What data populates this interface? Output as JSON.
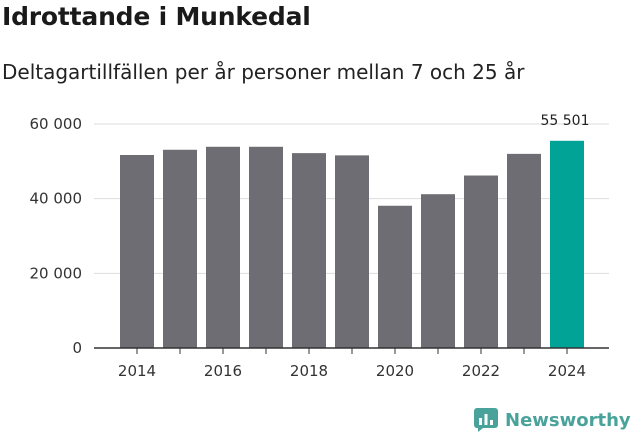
{
  "header": {
    "title": "Idrottande i Munkedal",
    "subtitle": "Deltagartillfällen per år personer mellan 7 och 25 år"
  },
  "brand": {
    "name": "Newsworthy",
    "icon": "bar-chart-icon",
    "color": "#4aa39a"
  },
  "colors": {
    "bar": "#6e6d73",
    "highlight": "#00a396",
    "grid": "#dddddd",
    "axis": "#333333"
  },
  "chart_data": {
    "type": "bar",
    "title": "Idrottande i Munkedal",
    "subtitle": "Deltagartillfällen per år personer mellan 7 och 25 år",
    "categories": [
      "2014",
      "2015",
      "2016",
      "2017",
      "2018",
      "2019",
      "2020",
      "2021",
      "2022",
      "2023",
      "2024"
    ],
    "values": [
      51700,
      53100,
      53900,
      53900,
      52200,
      51600,
      38100,
      41200,
      46200,
      52000,
      55501
    ],
    "highlight_index": 10,
    "highlight_label": "55 501",
    "xlabel": "",
    "ylabel": "",
    "ylim": [
      0,
      60000
    ],
    "yticks": [
      0,
      20000,
      40000,
      60000
    ],
    "ytick_labels": [
      "0",
      "20 000",
      "40 000",
      "60 000"
    ],
    "xtick_labels": [
      "2014",
      "",
      "2016",
      "",
      "2018",
      "",
      "2020",
      "",
      "2022",
      "",
      "2024"
    ],
    "grid": true,
    "legend": "none"
  }
}
